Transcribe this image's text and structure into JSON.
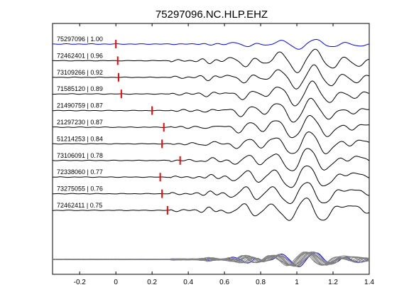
{
  "chart_data": {
    "type": "line",
    "title": "75297096.NC.HLP.EHZ",
    "xlim": [
      -0.35,
      1.4
    ],
    "xticks": [
      "-0.2",
      "0",
      "0.2",
      "0.4",
      "0.6",
      "0.8",
      "1",
      "1.2",
      "1.4"
    ],
    "xtick_values": [
      -0.2,
      0,
      0.2,
      0.4,
      0.6,
      0.8,
      1.0,
      1.2,
      1.4
    ],
    "grid": false,
    "colors": {
      "reference": "#0000ff",
      "trace": "#000000",
      "pick": "#ff0000",
      "stack": "#808080"
    },
    "traces": [
      {
        "label": "75297096 | 1.00",
        "id": "75297096",
        "cc": 1.0,
        "pick": 0.0,
        "color": "reference"
      },
      {
        "label": "72462401 | 0.96",
        "id": "72462401",
        "cc": 0.96,
        "pick": 0.01
      },
      {
        "label": "73109266 | 0.92",
        "id": "73109266",
        "cc": 0.92,
        "pick": 0.015
      },
      {
        "label": "71585120 | 0.89",
        "id": "71585120",
        "cc": 0.89,
        "pick": 0.03
      },
      {
        "label": "21490759 | 0.87",
        "id": "21490759",
        "cc": 0.87,
        "pick": 0.2
      },
      {
        "label": "21297230 | 0.87",
        "id": "21297230",
        "cc": 0.87,
        "pick": 0.265
      },
      {
        "label": "51214253 | 0.84",
        "id": "51214253",
        "cc": 0.84,
        "pick": 0.255
      },
      {
        "label": "73106091 | 0.78",
        "id": "73106091",
        "cc": 0.78,
        "pick": 0.355
      },
      {
        "label": "72338060 | 0.77",
        "id": "72338060",
        "cc": 0.77,
        "pick": 0.245
      },
      {
        "label": "73275055 | 0.76",
        "id": "73275055",
        "cc": 0.76,
        "pick": 0.255
      },
      {
        "label": "72462411 | 0.75",
        "id": "72462411",
        "cc": 0.75,
        "pick": 0.285
      }
    ],
    "stack": {
      "count": 11
    }
  }
}
